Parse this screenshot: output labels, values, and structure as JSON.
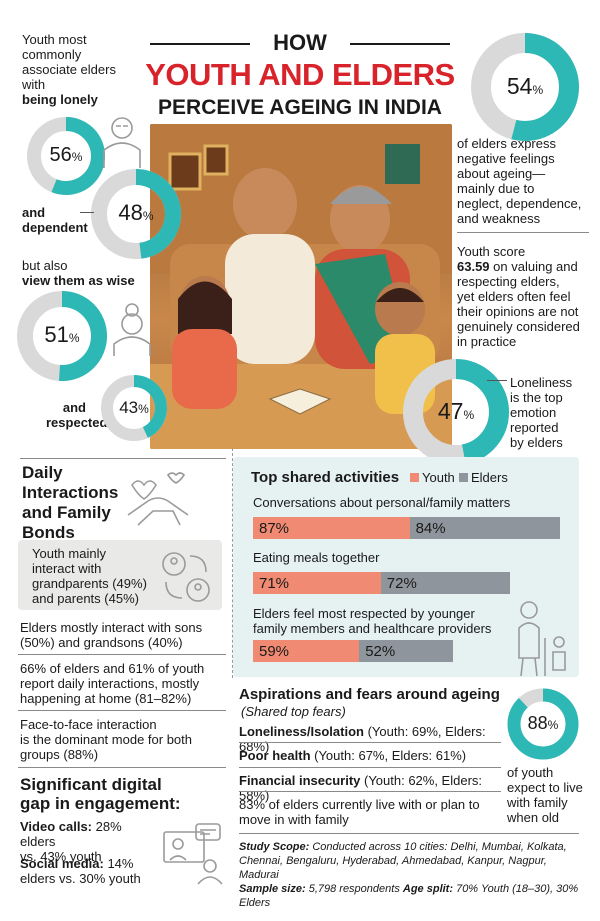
{
  "header": {
    "line1": "HOW",
    "line2": "YOUTH AND ELDERS",
    "line3": "PERCEIVE AGEING IN INDIA"
  },
  "colors": {
    "teal": "#2db7b5",
    "grey_ring": "#d9d9d9",
    "youth": "#f08a72",
    "elders": "#8e959c",
    "panel": "#e6f2f2"
  },
  "left_stats": {
    "intro": [
      "Youth most",
      "commonly",
      "associate elders",
      "with"
    ],
    "lonely_label": "being lonely",
    "lonely_value": "56",
    "dependent_label_1": "and",
    "dependent_label_2": "dependent",
    "dependent_value": "48",
    "wise_label_1": "but also",
    "wise_label_2": "view them as wise",
    "wise_value": "51",
    "respected_label_1": "and",
    "respected_label_2": "respected",
    "respected_value": "43",
    "percent": "%"
  },
  "right_stats": {
    "negative_value": "54",
    "negative_text": [
      "of elders express",
      "negative feelings",
      "about ageing—",
      "mainly due to",
      "neglect, dependence,",
      "and weakness"
    ],
    "score_text_1": "Youth score",
    "score_value": "63.59",
    "score_text_2": [
      "on valuing and",
      "respecting elders,",
      "yet elders often feel",
      "their opinions are not",
      "genuinely considered",
      "in practice"
    ],
    "loneliness_value": "47",
    "loneliness_text": [
      "Loneliness",
      "is the top",
      "emotion",
      "reported",
      "by elders"
    ]
  },
  "daily": {
    "title": [
      "Daily",
      "Interactions",
      "and Family",
      "Bonds"
    ],
    "box_text": [
      "Youth mainly",
      "interact with",
      "grandparents (49%)",
      "and parents (45%)"
    ],
    "item1": [
      "Elders mostly interact with sons",
      "(50%) and grandsons (40%)"
    ],
    "item2": [
      "66% of elders and 61% of youth",
      "report daily interactions, mostly",
      "happening at home (81–82%)"
    ],
    "item3": [
      "Face-to-face interaction",
      "is the dominant mode for both",
      "groups (88%)"
    ]
  },
  "digital": {
    "title": [
      "Significant digital",
      "gap in engagement:"
    ],
    "video_label": "Video calls:",
    "video_text_1": "28% elders",
    "video_text_2": "vs. 43% youth",
    "social_label": "Social media:",
    "social_text_1": "14%",
    "social_text_2": "elders vs. 30% youth"
  },
  "activities": {
    "title": "Top shared activities",
    "legend_youth": "Youth",
    "legend_elders": "Elders",
    "items": [
      {
        "label": "Conversations about personal/family matters",
        "youth": "87%",
        "elders": "84%"
      },
      {
        "label": "Eating meals together",
        "youth": "71%",
        "elders": "72%"
      },
      {
        "label_lines": [
          "Elders feel most respected by younger",
          "family members and healthcare providers"
        ],
        "youth": "59%",
        "elders": "52%"
      }
    ]
  },
  "chart_data": {
    "type": "bar",
    "title": "Top shared activities",
    "categories": [
      "Conversations about personal/family matters",
      "Eating meals together",
      "Elders feel most respected by younger family members and healthcare providers"
    ],
    "series": [
      {
        "name": "Youth",
        "values": [
          87,
          71,
          59
        ]
      },
      {
        "name": "Elders",
        "values": [
          84,
          72,
          52
        ]
      }
    ]
  },
  "aspirations": {
    "title": "Aspirations and fears around ageing",
    "subtitle": "(Shared top fears)",
    "fears": [
      {
        "label": "Loneliness/Isolation",
        "detail": " (Youth: 69%, Elders: 68%)"
      },
      {
        "label": "Poor health",
        "detail": " (Youth: 67%, Elders: 61%)"
      },
      {
        "label": "Financial insecurity",
        "detail": " (Youth: 62%, Elders: 58%)"
      }
    ],
    "live_text": [
      "83% of elders currently live with or plan to",
      "move in with family"
    ],
    "family_value": "88",
    "family_text": [
      "of youth",
      "expect to live",
      "with family",
      "when old"
    ]
  },
  "footer": {
    "scope_label": "Study Scope:",
    "scope_text_1": " Conducted across 10 cities: Delhi, Mumbai, Kolkata,",
    "scope_text_2": "Chennai, Bengaluru, Hyderabad, Ahmedabad, Kanpur, Nagpur, Madurai",
    "sample_label": "Sample size:",
    "sample_text": " 5,798 respondents ",
    "age_label": "Age split:",
    "age_text": " 70% Youth (18–30), 30% Elders"
  }
}
